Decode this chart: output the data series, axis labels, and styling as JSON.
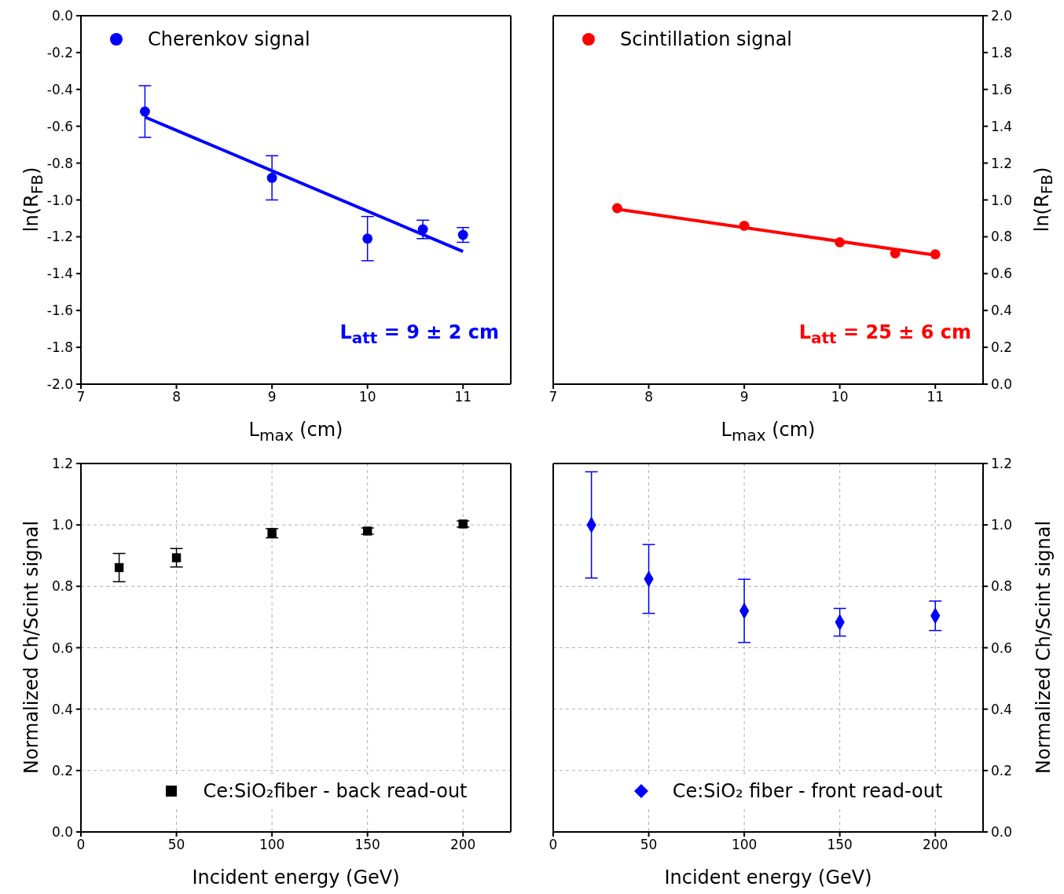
{
  "chart_data": [
    {
      "type": "scatter",
      "xlabel": "L$_{max}$ (cm)",
      "ylabel": "ln(R$_{FB}$)",
      "xlim": [
        7,
        11.5
      ],
      "xticks": [
        7,
        8,
        9,
        10,
        11
      ],
      "ylim": [
        -2,
        0
      ],
      "yticks": [
        {
          "value": -2,
          "label": "-2.0"
        },
        -1.8,
        -1.6,
        -1.4,
        -1.2,
        {
          "value": -1,
          "label": "-1.0"
        },
        -0.8,
        -0.6,
        -0.4,
        -0.2,
        {
          "value": 0,
          "label": "0.0"
        }
      ],
      "legend": "top left",
      "annotations": [
        "L$_{att}$ = 9 ± 2 cm"
      ],
      "series": [
        {
          "name": "Cherenkov signal",
          "color": "#0000ff",
          "marker": "circle",
          "x": [
            7.67,
            9,
            10,
            10.58,
            11
          ],
          "values": [
            -0.52,
            -0.88,
            -1.21,
            -1.16,
            -1.19
          ],
          "errors": [
            0.14,
            0.12,
            0.12,
            0.05,
            0.04
          ]
        },
        {
          "type": "line",
          "color": "#0000ff",
          "marker": "none",
          "x": [
            7.67,
            11
          ],
          "values": [
            -0.55,
            -1.28
          ]
        }
      ]
    },
    {
      "type": "scatter",
      "xlabel": "L$_{max}$ (cm)",
      "y2label": "ln(R$_{FB}$)",
      "xlim": [
        7,
        11.5
      ],
      "xticks": [
        7,
        8,
        9,
        10,
        11
      ],
      "y2lim": [
        0,
        2
      ],
      "y2ticks": [
        {
          "value": 0,
          "label": "0.0"
        },
        0.2,
        0.4,
        0.6,
        0.8,
        {
          "value": 1,
          "label": "1.0"
        },
        1.2,
        1.4,
        1.6,
        1.8,
        {
          "value": 2,
          "label": "2.0"
        }
      ],
      "legend": "top left",
      "annotations": [
        "L$_{att}$ = 25 ± 6 cm"
      ],
      "series": [
        {
          "name": "Scintillation signal",
          "color": "#ff0000",
          "marker": "circle",
          "axis": "y2",
          "x": [
            7.67,
            9,
            10,
            10.58,
            11
          ],
          "values": [
            0.955,
            0.86,
            0.77,
            0.71,
            0.705
          ]
        },
        {
          "type": "line",
          "color": "#ff0000",
          "marker": "none",
          "axis": "y2",
          "x": [
            7.67,
            11
          ],
          "values": [
            0.95,
            0.7
          ]
        }
      ]
    },
    {
      "type": "scatter",
      "xlabel": "Incident energy (GeV)",
      "ylabel": "Normalized Ch/Scint signal",
      "xlim": [
        0,
        225
      ],
      "xticks": [
        0,
        50,
        100,
        150,
        200
      ],
      "ylim": [
        0,
        1.2
      ],
      "yticks": [
        {
          "value": 0,
          "label": "0.0"
        },
        0.2,
        0.4,
        0.6,
        0.8,
        {
          "value": 1,
          "label": "1.0"
        },
        1.2
      ],
      "grid": true,
      "legend": "bottom",
      "series": [
        {
          "name": "Ce:SiO₂fiber - back read-out",
          "color": "#000000",
          "marker": "square",
          "x": [
            20,
            50,
            100,
            150,
            200
          ],
          "values": [
            0.861,
            0.893,
            0.973,
            0.98,
            1.003
          ],
          "errors": [
            0.046,
            0.03,
            0.015,
            0.01,
            0.01
          ]
        }
      ]
    },
    {
      "type": "scatter",
      "xlabel": "Incident energy (GeV)",
      "y2label": "Normalized Ch/Scint signal",
      "xlim": [
        0,
        225
      ],
      "xticks": [
        0,
        50,
        100,
        150,
        200
      ],
      "y2lim": [
        0,
        1.2
      ],
      "y2ticks": [
        {
          "value": 0,
          "label": "0.0"
        },
        0.2,
        0.4,
        0.6,
        0.8,
        {
          "value": 1,
          "label": "1.0"
        },
        1.2
      ],
      "grid": true,
      "legend": "bottom",
      "series": [
        {
          "name": "Ce:SiO₂ fiber - front read-out",
          "color": "#0000ff",
          "marker": "diamond",
          "axis": "y2",
          "x": [
            20,
            50,
            100,
            150,
            200
          ],
          "values": [
            1.0,
            0.824,
            0.72,
            0.683,
            0.704
          ],
          "errors": [
            0.173,
            0.112,
            0.103,
            0.045,
            0.048
          ]
        }
      ]
    }
  ]
}
